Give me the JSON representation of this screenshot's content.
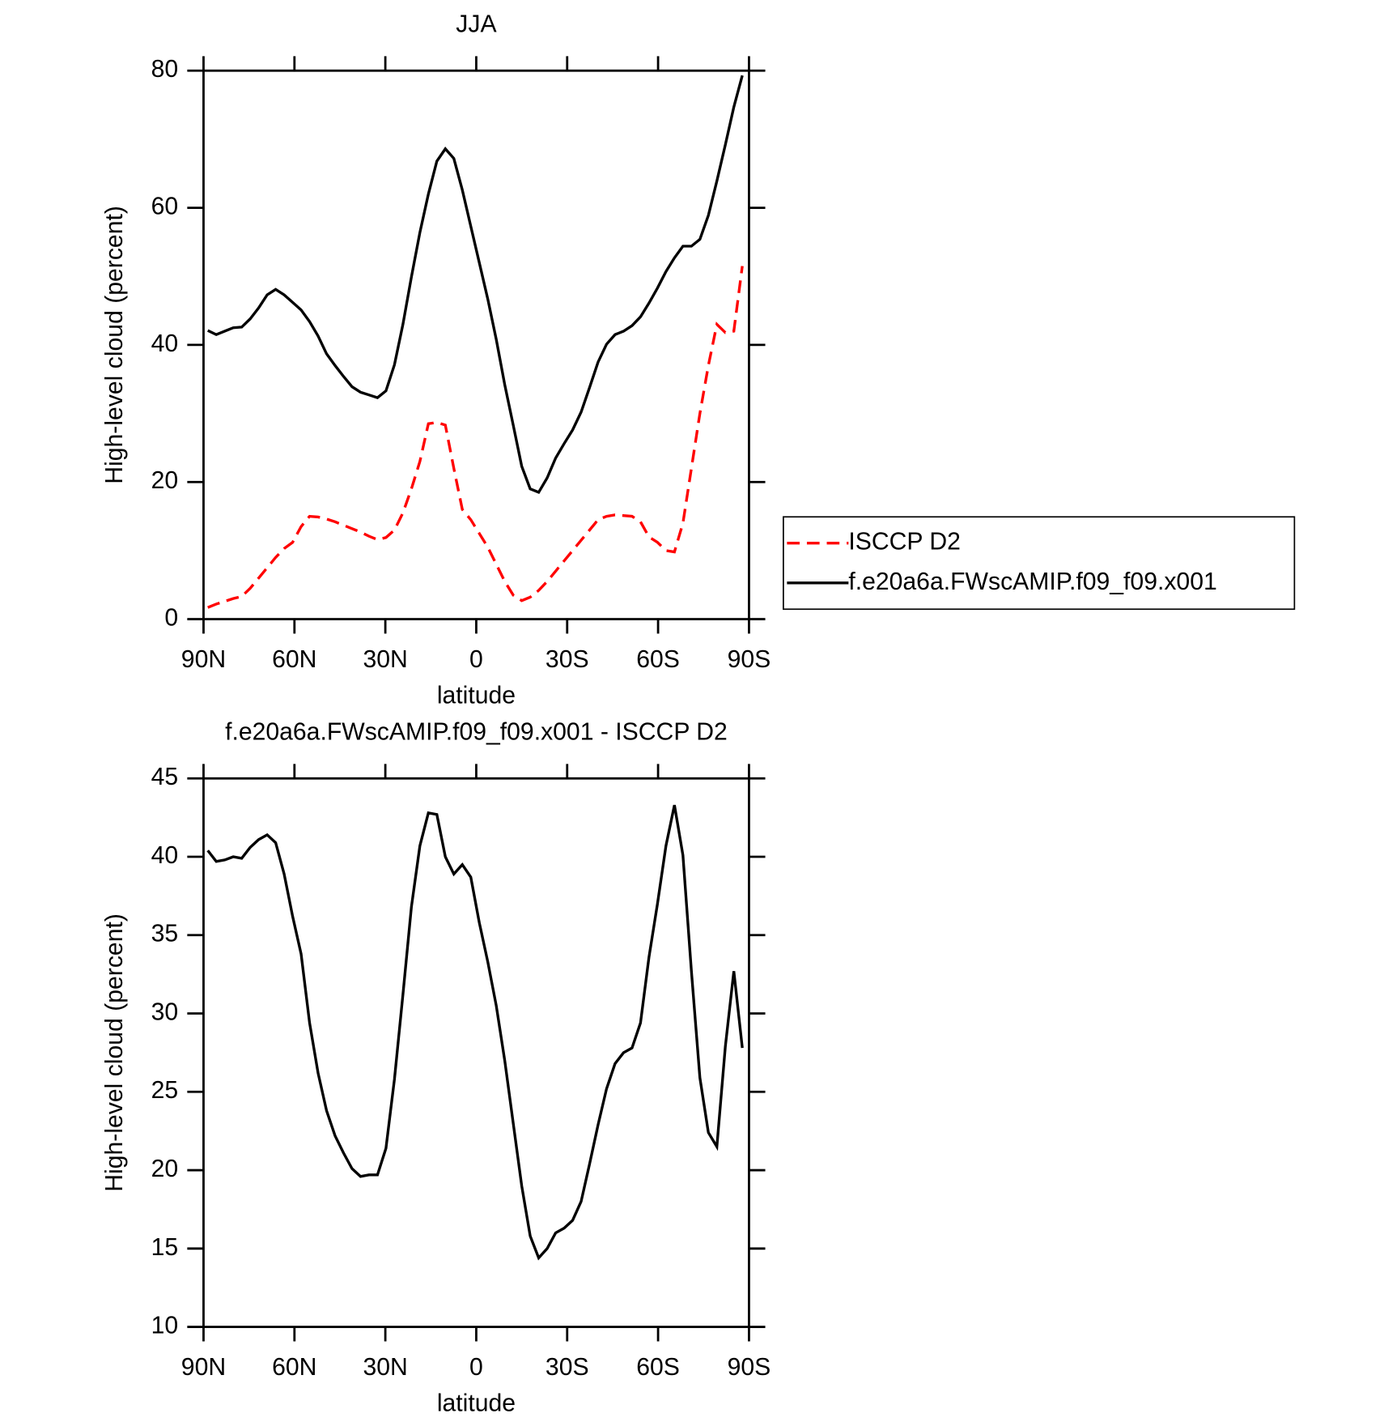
{
  "chart_data": [
    {
      "type": "line",
      "title": "JJA",
      "xlabel": "latitude",
      "ylabel": "High-level cloud (percent)",
      "x": [
        88.6,
        85.8,
        83,
        80.2,
        77.4,
        74.6,
        71.8,
        69,
        66.2,
        63.4,
        60.6,
        57.8,
        55,
        52.2,
        49.4,
        46.6,
        43.8,
        41,
        38.2,
        35.4,
        32.6,
        29.8,
        27,
        24.2,
        21.4,
        18.6,
        15.8,
        13,
        10.2,
        7.4,
        4.6,
        1.8,
        -1,
        -3.8,
        -6.6,
        -9.4,
        -12.2,
        -15,
        -17.8,
        -20.6,
        -23.4,
        -26.2,
        -29,
        -31.8,
        -34.6,
        -37.4,
        -40.2,
        -43,
        -45.8,
        -48.6,
        -51.4,
        -54.2,
        -57,
        -59.8,
        -62.6,
        -65.4,
        -68.2,
        -71,
        -73.8,
        -76.6,
        -79.4,
        -82.2,
        -85,
        -87.8
      ],
      "series": [
        {
          "name": "ISCCP D2",
          "color": "#ff0000",
          "line_style": "dashed",
          "values": [
            1.7,
            2.2,
            2.6,
            3.0,
            3.3,
            4.5,
            6,
            7.5,
            9,
            10.3,
            11.2,
            13.5,
            15,
            14.9,
            14.6,
            14.2,
            13.7,
            13.2,
            12.7,
            12.1,
            11.6,
            11.9,
            13,
            15.5,
            19,
            23,
            28.5,
            28.7,
            28.3,
            22,
            16,
            14.5,
            12.5,
            10.5,
            8,
            5.5,
            3.5,
            2.7,
            3.2,
            4.2,
            5.5,
            7,
            8.5,
            10,
            11.5,
            13,
            14.5,
            15,
            15.2,
            15.1,
            15,
            14.2,
            12,
            11.2,
            10,
            9.8,
            14,
            22,
            30,
            37,
            43,
            41.8,
            42,
            51.5
          ]
        },
        {
          "name": "f.e20a6a.FWscAMIP.f09_f09.x001",
          "color": "#000000",
          "line_style": "solid",
          "values": [
            42.1,
            41.5,
            42,
            42.5,
            42.6,
            43.8,
            45.4,
            47.3,
            48.1,
            47.3,
            46.2,
            45.1,
            43.4,
            41.3,
            38.7,
            37,
            35.4,
            33.9,
            33.1,
            32.7,
            32.3,
            33.3,
            37.1,
            43,
            49.9,
            56.4,
            62,
            66.8,
            68.6,
            67.2,
            62.6,
            57.3,
            52,
            46.7,
            40.8,
            34.2,
            28.3,
            22.3,
            19,
            18.5,
            20.6,
            23.5,
            25.6,
            27.6,
            30.2,
            33.8,
            37.5,
            40.1,
            41.5,
            42,
            42.8,
            44.1,
            46.1,
            48.3,
            50.7,
            52.7,
            54.4,
            54.4,
            55.4,
            58.9,
            63.9,
            69.2,
            74.7,
            79.3
          ]
        }
      ],
      "xlim": [
        90,
        -90
      ],
      "xticks": [
        {
          "value": 90,
          "label": "90N"
        },
        {
          "value": 60,
          "label": "60N"
        },
        {
          "value": 30,
          "label": "30N"
        },
        0,
        {
          "value": -30,
          "label": "30S"
        },
        {
          "value": -60,
          "label": "60S"
        },
        {
          "value": -90,
          "label": "90S"
        }
      ],
      "ylim": [
        0,
        80
      ],
      "yticks": [
        0,
        20,
        40,
        60,
        80
      ],
      "legend": "right"
    },
    {
      "type": "line",
      "title": "f.e20a6a.FWscAMIP.f09_f09.x001 - ISCCP D2",
      "xlabel": "latitude",
      "ylabel": "High-level cloud (percent)",
      "x": [
        88.6,
        85.8,
        83,
        80.2,
        77.4,
        74.6,
        71.8,
        69,
        66.2,
        63.4,
        60.6,
        57.8,
        55,
        52.2,
        49.4,
        46.6,
        43.8,
        41,
        38.2,
        35.4,
        32.6,
        29.8,
        27,
        24.2,
        21.4,
        18.6,
        15.8,
        13,
        10.2,
        7.4,
        4.6,
        1.8,
        -1,
        -3.8,
        -6.6,
        -9.4,
        -12.2,
        -15,
        -17.8,
        -20.6,
        -23.4,
        -26.2,
        -29,
        -31.8,
        -34.6,
        -37.4,
        -40.2,
        -43,
        -45.8,
        -48.6,
        -51.4,
        -54.2,
        -57,
        -59.8,
        -62.6,
        -65.4,
        -68.2,
        -71,
        -73.8,
        -76.6,
        -79.4,
        -82.2,
        -85,
        -87.8
      ],
      "values": [
        40.4,
        39.7,
        39.8,
        40,
        39.9,
        40.6,
        41.1,
        41.4,
        40.9,
        38.9,
        36.2,
        33.8,
        29.4,
        26.2,
        23.8,
        22.2,
        21.1,
        20.1,
        19.6,
        19.7,
        19.7,
        21.4,
        25.8,
        31.2,
        36.8,
        40.7,
        42.8,
        42.7,
        40,
        38.9,
        39.5,
        38.7,
        35.8,
        33.3,
        30.5,
        27,
        23,
        19,
        15.8,
        14.4,
        15,
        16,
        16.3,
        16.8,
        18,
        20.4,
        22.9,
        25.2,
        26.8,
        27.5,
        27.8,
        29.4,
        33.6,
        37,
        40.7,
        43.3,
        40.1,
        32.7,
        25.9,
        22.4,
        21.5,
        27.9,
        32.7,
        27.8
      ],
      "color": "#000000",
      "xlim": [
        90,
        -90
      ],
      "xticks": [
        {
          "value": 90,
          "label": "90N"
        },
        {
          "value": 60,
          "label": "60N"
        },
        {
          "value": 30,
          "label": "30N"
        },
        0,
        {
          "value": -30,
          "label": "30S"
        },
        {
          "value": -60,
          "label": "60S"
        },
        {
          "value": -90,
          "label": "90S"
        }
      ],
      "ylim": [
        10,
        45
      ],
      "yticks": [
        10,
        15,
        20,
        25,
        30,
        35,
        40,
        45
      ]
    }
  ]
}
